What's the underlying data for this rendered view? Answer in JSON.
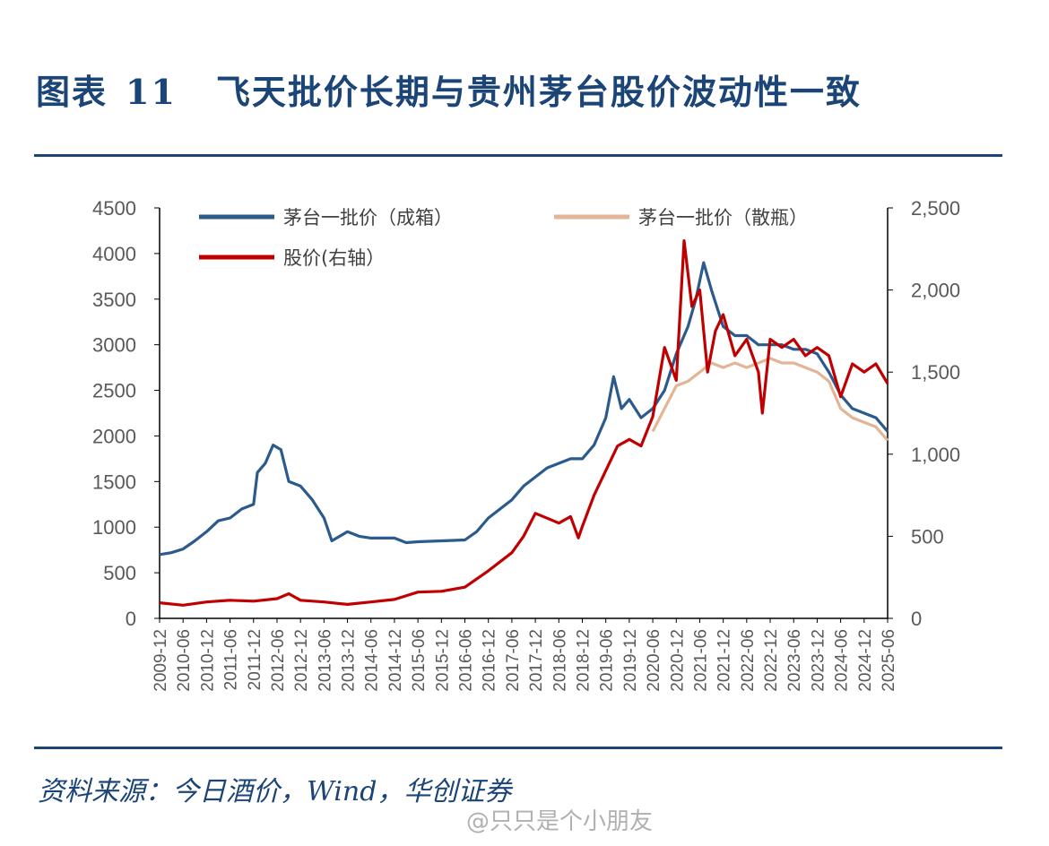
{
  "header": {
    "label": "图表",
    "number": "11",
    "title": "飞天批价长期与贵州茅台股价波动性一致"
  },
  "footer": {
    "source": "资料来源：今日酒价，Wind，华创证券",
    "watermark": "@只只是个小朋友"
  },
  "colors": {
    "brand": "#1b4477",
    "case_price": "#2b5b8c",
    "bottle_price": "#e2b597",
    "stock_price": "#c00000"
  },
  "chart_data": {
    "type": "line",
    "title": "飞天批价长期与贵州茅台股价波动性一致",
    "legend_position": "top",
    "grid": false,
    "x_labels": [
      "2009-12",
      "2010-06",
      "2010-12",
      "2011-06",
      "2011-12",
      "2012-06",
      "2012-12",
      "2013-06",
      "2013-12",
      "2014-06",
      "2014-12",
      "2015-06",
      "2015-12",
      "2016-06",
      "2016-12",
      "2017-06",
      "2017-12",
      "2018-06",
      "2018-12",
      "2019-06",
      "2019-12",
      "2020-06",
      "2020-12",
      "2021-06",
      "2021-12",
      "2022-06",
      "2022-12",
      "2023-06",
      "2023-12",
      "2024-06",
      "2024-12",
      "2025-06"
    ],
    "y_left": {
      "min": 0,
      "max": 4500,
      "ticks": [
        "4500",
        "4000",
        "3500",
        "3000",
        "2500",
        "2000",
        "1500",
        "1000",
        "500",
        "0"
      ]
    },
    "y_right": {
      "min": 0,
      "max": 2500,
      "ticks": [
        "2,500",
        "2,000",
        "1,500",
        "1,000",
        "500",
        "0"
      ]
    },
    "series": [
      {
        "name": "茅台一批价（成箱）",
        "axis": "left",
        "points": [
          [
            "2009-12",
            700
          ],
          [
            "2010-03",
            720
          ],
          [
            "2010-06",
            760
          ],
          [
            "2010-09",
            850
          ],
          [
            "2010-12",
            950
          ],
          [
            "2011-03",
            1070
          ],
          [
            "2011-06",
            1100
          ],
          [
            "2011-09",
            1200
          ],
          [
            "2011-12",
            1250
          ],
          [
            "2012-01",
            1600
          ],
          [
            "2012-03",
            1700
          ],
          [
            "2012-05",
            1900
          ],
          [
            "2012-07",
            1850
          ],
          [
            "2012-09",
            1500
          ],
          [
            "2012-12",
            1450
          ],
          [
            "2013-03",
            1300
          ],
          [
            "2013-06",
            1100
          ],
          [
            "2013-08",
            850
          ],
          [
            "2013-12",
            950
          ],
          [
            "2014-03",
            900
          ],
          [
            "2014-06",
            880
          ],
          [
            "2014-12",
            880
          ],
          [
            "2015-03",
            830
          ],
          [
            "2015-06",
            840
          ],
          [
            "2015-12",
            850
          ],
          [
            "2016-06",
            860
          ],
          [
            "2016-09",
            950
          ],
          [
            "2016-12",
            1100
          ],
          [
            "2017-03",
            1200
          ],
          [
            "2017-06",
            1300
          ],
          [
            "2017-09",
            1450
          ],
          [
            "2017-12",
            1550
          ],
          [
            "2018-03",
            1650
          ],
          [
            "2018-06",
            1700
          ],
          [
            "2018-09",
            1750
          ],
          [
            "2018-12",
            1750
          ],
          [
            "2019-03",
            1900
          ],
          [
            "2019-06",
            2200
          ],
          [
            "2019-08",
            2650
          ],
          [
            "2019-10",
            2300
          ],
          [
            "2019-12",
            2400
          ],
          [
            "2020-03",
            2200
          ],
          [
            "2020-06",
            2300
          ],
          [
            "2020-09",
            2500
          ],
          [
            "2020-12",
            2900
          ],
          [
            "2021-03",
            3200
          ],
          [
            "2021-05",
            3500
          ],
          [
            "2021-07",
            3900
          ],
          [
            "2021-09",
            3600
          ],
          [
            "2021-12",
            3200
          ],
          [
            "2022-03",
            3100
          ],
          [
            "2022-06",
            3100
          ],
          [
            "2022-09",
            3000
          ],
          [
            "2022-12",
            3000
          ],
          [
            "2023-03",
            3000
          ],
          [
            "2023-06",
            2950
          ],
          [
            "2023-09",
            2950
          ],
          [
            "2023-12",
            2900
          ],
          [
            "2024-03",
            2700
          ],
          [
            "2024-06",
            2450
          ],
          [
            "2024-09",
            2300
          ],
          [
            "2024-12",
            2250
          ],
          [
            "2025-03",
            2200
          ],
          [
            "2025-06",
            2050
          ]
        ]
      },
      {
        "name": "茅台一批价（散瓶）",
        "axis": "left",
        "points": [
          [
            "2020-06",
            2050
          ],
          [
            "2020-09",
            2300
          ],
          [
            "2020-12",
            2550
          ],
          [
            "2021-03",
            2600
          ],
          [
            "2021-06",
            2700
          ],
          [
            "2021-09",
            2800
          ],
          [
            "2021-12",
            2750
          ],
          [
            "2022-03",
            2800
          ],
          [
            "2022-06",
            2750
          ],
          [
            "2022-09",
            2800
          ],
          [
            "2022-12",
            2850
          ],
          [
            "2023-03",
            2800
          ],
          [
            "2023-06",
            2800
          ],
          [
            "2023-09",
            2750
          ],
          [
            "2023-12",
            2700
          ],
          [
            "2024-03",
            2600
          ],
          [
            "2024-06",
            2300
          ],
          [
            "2024-09",
            2200
          ],
          [
            "2024-12",
            2150
          ],
          [
            "2025-03",
            2100
          ],
          [
            "2025-06",
            1950
          ]
        ]
      },
      {
        "name": "股价(右轴）",
        "axis": "right",
        "points": [
          [
            "2009-12",
            95
          ],
          [
            "2010-06",
            80
          ],
          [
            "2010-12",
            100
          ],
          [
            "2011-06",
            110
          ],
          [
            "2011-12",
            105
          ],
          [
            "2012-06",
            120
          ],
          [
            "2012-09",
            150
          ],
          [
            "2012-12",
            110
          ],
          [
            "2013-06",
            100
          ],
          [
            "2013-12",
            85
          ],
          [
            "2014-06",
            100
          ],
          [
            "2014-12",
            115
          ],
          [
            "2015-06",
            160
          ],
          [
            "2015-12",
            165
          ],
          [
            "2016-06",
            190
          ],
          [
            "2016-12",
            290
          ],
          [
            "2017-06",
            400
          ],
          [
            "2017-09",
            500
          ],
          [
            "2017-12",
            640
          ],
          [
            "2018-03",
            610
          ],
          [
            "2018-06",
            580
          ],
          [
            "2018-09",
            620
          ],
          [
            "2018-11",
            490
          ],
          [
            "2018-12",
            560
          ],
          [
            "2019-03",
            750
          ],
          [
            "2019-06",
            900
          ],
          [
            "2019-09",
            1050
          ],
          [
            "2019-12",
            1090
          ],
          [
            "2020-03",
            1050
          ],
          [
            "2020-06",
            1230
          ],
          [
            "2020-09",
            1650
          ],
          [
            "2020-12",
            1450
          ],
          [
            "2021-02",
            2300
          ],
          [
            "2021-04",
            1900
          ],
          [
            "2021-06",
            2000
          ],
          [
            "2021-08",
            1500
          ],
          [
            "2021-10",
            1750
          ],
          [
            "2021-12",
            1850
          ],
          [
            "2022-03",
            1600
          ],
          [
            "2022-06",
            1700
          ],
          [
            "2022-09",
            1500
          ],
          [
            "2022-10",
            1250
          ],
          [
            "2022-12",
            1700
          ],
          [
            "2023-03",
            1650
          ],
          [
            "2023-06",
            1700
          ],
          [
            "2023-09",
            1600
          ],
          [
            "2023-12",
            1650
          ],
          [
            "2024-03",
            1600
          ],
          [
            "2024-06",
            1350
          ],
          [
            "2024-09",
            1550
          ],
          [
            "2024-12",
            1500
          ],
          [
            "2025-03",
            1550
          ],
          [
            "2025-06",
            1430
          ]
        ]
      }
    ]
  }
}
